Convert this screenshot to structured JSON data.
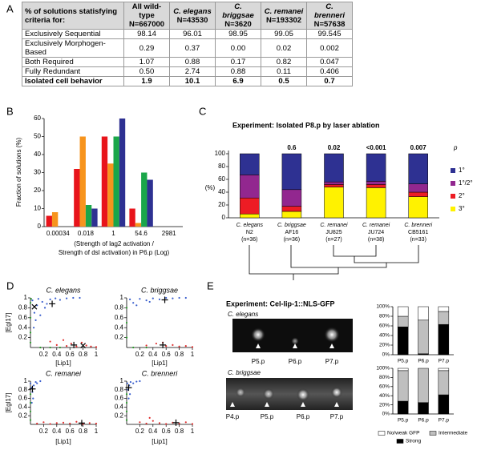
{
  "panel_labels": [
    "A",
    "B",
    "C",
    "D",
    "E"
  ],
  "table": {
    "header_label": "% of solutions statisfying criteria for:",
    "columns": [
      {
        "name": "All wild-type",
        "n": "N=667000",
        "italic": false
      },
      {
        "name": "C. elegans",
        "n": "N=43530",
        "italic": true
      },
      {
        "name": "C. briggsae",
        "n": "N=3620",
        "italic": true
      },
      {
        "name": "C. remanei",
        "n": "N=193302",
        "italic": true
      },
      {
        "name": "C. brenneri",
        "n": "N=57638",
        "italic": true
      }
    ],
    "rows": [
      [
        "Exclusively Sequential",
        "98.14",
        "96.01",
        "98.95",
        "99.05",
        "99.545"
      ],
      [
        "Exclusively Morphogen-Based",
        "0.29",
        "0.37",
        "0.00",
        "0.02",
        "0.002"
      ],
      [
        "Both Required",
        "1.07",
        "0.88",
        "0.17",
        "0.82",
        "0.047"
      ],
      [
        "Fully Redundant",
        "0.50",
        "2.74",
        "0.88",
        "0.11",
        "0.406"
      ],
      [
        "Isolated cell behavior",
        "1.9",
        "10.1",
        "6.9",
        "0.5",
        "0.7"
      ]
    ],
    "bold_last_row": true
  },
  "chart_data": [
    {
      "type": "bar",
      "ylabel": "Fraction of solutions (%)",
      "xlabel": [
        "(Strength of lag2 activation /",
        "Strength of dsl activation) in P6.p (Log)"
      ],
      "categories": [
        "0.00034",
        "0.018",
        "1",
        "54.6",
        "2981"
      ],
      "series": [
        {
          "color": "#e8141b",
          "values": [
            6,
            32,
            50,
            10,
            null
          ]
        },
        {
          "color": "#f7941d",
          "values": [
            8,
            50,
            35,
            2,
            null
          ]
        },
        {
          "color": "#1aa64a",
          "values": [
            null,
            12,
            50,
            30,
            null
          ]
        },
        {
          "color": "#2e3192",
          "values": [
            null,
            10,
            60,
            26,
            null
          ]
        }
      ],
      "ylim": [
        0,
        60
      ],
      "yticks": [
        0,
        10,
        20,
        30,
        40,
        50,
        60
      ]
    },
    {
      "type": "stacked_bar",
      "title": "Experiment: Isolated P8.p by laser ablation",
      "ylabel": "(%)",
      "categories": [
        [
          "C. elegans",
          "N2",
          "(n=36)"
        ],
        [
          "C. briggsae",
          "AF16",
          "(n=36)"
        ],
        [
          "C. remanei",
          "JU825",
          "(n=27)"
        ],
        [
          "C. remanei",
          "JU724",
          "(n=38)"
        ],
        [
          "C. brenneri",
          "CB5161",
          "(n=33)"
        ]
      ],
      "series": [
        {
          "name": "3°",
          "color": "#fff200",
          "values": [
            6,
            10,
            48,
            47,
            33
          ]
        },
        {
          "name": "2°",
          "color": "#ed1c24",
          "values": [
            25,
            8,
            4,
            5,
            7
          ]
        },
        {
          "name": "1°/2°",
          "color": "#92278f",
          "values": [
            36,
            26,
            4,
            5,
            13
          ]
        },
        {
          "name": "1°",
          "color": "#2e3192",
          "values": [
            33,
            56,
            44,
            43,
            47
          ]
        }
      ],
      "p_values": [
        null,
        "0.6",
        "0.02",
        "<0.001",
        "0.007"
      ],
      "p_label": "p",
      "ylim": [
        0,
        105
      ],
      "yticks": [
        0,
        20,
        40,
        60,
        80,
        100
      ],
      "legend": "right"
    },
    {
      "type": "scatter",
      "title": "C. elegans",
      "ylabel": "[Egl17]",
      "xlabel": "[Lip1]",
      "xlim": [
        0,
        1
      ],
      "ylim": [
        0,
        1
      ],
      "xticks": [
        0.2,
        0.4,
        0.6,
        0.8,
        1
      ],
      "yticks": [
        0.2,
        0.4,
        0.6,
        0.8,
        1
      ],
      "series": [
        {
          "color": "#3a5fcd",
          "x": [
            0.03,
            0.06,
            0.1,
            0.12,
            0.18,
            0.22,
            0.3,
            0.38,
            0.45,
            0.55,
            0.65,
            0.75,
            0.08,
            0.15,
            0.25,
            0.05
          ],
          "y": [
            0.95,
            0.7,
            0.85,
            0.98,
            0.92,
            0.8,
            0.97,
            0.99,
            0.96,
            0.99,
            1,
            1,
            0.55,
            0.65,
            0.88,
            0.4
          ]
        },
        {
          "color": "#e03030",
          "x": [
            0.3,
            0.4,
            0.5,
            0.55,
            0.62,
            0.7,
            0.78,
            0.85,
            0.92,
            1
          ],
          "y": [
            0.12,
            0.05,
            0.15,
            0.03,
            0.08,
            0.02,
            0.1,
            0.04,
            0.02,
            0.01
          ]
        },
        {
          "color": "#2a9a2a",
          "x": [
            0,
            0,
            0,
            0,
            0.01,
            0.15,
            0.3,
            0.45
          ],
          "y": [
            0.1,
            0.3,
            0.6,
            0.9,
            0.98,
            0,
            0,
            0
          ]
        },
        {
          "color": "#000000",
          "marker": "x",
          "x": [
            0.06,
            0.8
          ],
          "y": [
            0.82,
            0.04
          ]
        },
        {
          "color": "#000000",
          "marker": "plus",
          "x": [
            0.33,
            0.66
          ],
          "y": [
            0.88,
            0.05
          ]
        }
      ]
    },
    {
      "type": "scatter",
      "title": "C. briggsae",
      "xlabel": "[Lip1]",
      "xlim": [
        0,
        1
      ],
      "ylim": [
        0,
        1
      ],
      "xticks": [
        0.2,
        0.4,
        0.6,
        0.8,
        1
      ],
      "yticks": [
        0.2,
        0.4,
        0.6,
        0.8,
        1
      ],
      "series": [
        {
          "color": "#3a5fcd",
          "x": [
            0.05,
            0.1,
            0.2,
            0.3,
            0.4,
            0.5,
            0.6,
            0.7,
            0.8,
            0.9,
            0.15,
            0.35
          ],
          "y": [
            0.97,
            0.9,
            0.98,
            0.95,
            0.99,
            0.97,
            1,
            0.99,
            1,
            1,
            0.85,
            0.92
          ]
        },
        {
          "color": "#e03030",
          "x": [
            0.3,
            0.45,
            0.55,
            0.6,
            0.7,
            0.8,
            0.9,
            1
          ],
          "y": [
            0.04,
            0.08,
            0.1,
            0.03,
            0.05,
            0.02,
            0.03,
            0.01
          ]
        },
        {
          "color": "#2a9a2a",
          "x": [
            0,
            0,
            0,
            0.1,
            0.3
          ],
          "y": [
            0.2,
            0.5,
            0.8,
            0,
            0
          ]
        },
        {
          "color": "#000000",
          "marker": "plus",
          "x": [
            0.58,
            0.55
          ],
          "y": [
            0.96,
            0.05
          ]
        }
      ]
    },
    {
      "type": "scatter",
      "title": "C. remanei",
      "ylabel": "[Egl17]",
      "xlabel": "[Lip1]",
      "xlim": [
        0,
        1
      ],
      "ylim": [
        0,
        1
      ],
      "xticks": [
        0.2,
        0.4,
        0.6,
        0.8,
        1
      ],
      "yticks": [
        0.2,
        0.4,
        0.6,
        0.8,
        1
      ],
      "series": [
        {
          "color": "#3a5fcd",
          "x": [
            0,
            0.02,
            0.03,
            0.05,
            0.04,
            0.08,
            0.02,
            0.1,
            0.15
          ],
          "y": [
            0.95,
            0.85,
            0.75,
            0.9,
            0.6,
            0.98,
            0.5,
            0.95,
            1
          ]
        },
        {
          "color": "#e03030",
          "x": [
            0.1,
            0.2,
            0.3,
            0.4,
            0.5,
            0.6,
            0.7,
            0.8,
            0.9,
            1
          ],
          "y": [
            0.02,
            0.05,
            0.01,
            0.03,
            0.04,
            0.02,
            0.06,
            0.01,
            0.03,
            0.02
          ]
        },
        {
          "color": "#2a9a2a",
          "x": [
            0,
            0,
            0,
            0
          ],
          "y": [
            0.1,
            0.3,
            0.5,
            0.7
          ]
        },
        {
          "color": "#000000",
          "marker": "plus",
          "x": [
            0.03,
            0.78
          ],
          "y": [
            0.82,
            0.03
          ]
        }
      ]
    },
    {
      "type": "scatter",
      "title": "C. brenneri",
      "xlabel": "[Lip1]",
      "xlim": [
        0,
        1
      ],
      "ylim": [
        0,
        1
      ],
      "xticks": [
        0.2,
        0.4,
        0.6,
        0.8,
        1
      ],
      "yticks": [
        0.2,
        0.4,
        0.6,
        0.8,
        1
      ],
      "series": [
        {
          "color": "#3a5fcd",
          "x": [
            0.01,
            0.02,
            0.04,
            0.06,
            0.1,
            0.15,
            0.2,
            0.03,
            0.05
          ],
          "y": [
            0.95,
            0.8,
            0.9,
            0.98,
            0.95,
            0.99,
            1,
            0.6,
            0.7
          ]
        },
        {
          "color": "#e03030",
          "x": [
            0.2,
            0.3,
            0.4,
            0.5,
            0.6,
            0.7,
            0.8,
            0.9,
            1,
            0.35
          ],
          "y": [
            0.05,
            0.02,
            0.08,
            0.03,
            0.01,
            0.04,
            0.02,
            0.05,
            0.01,
            0.15
          ]
        },
        {
          "color": "#2a9a2a",
          "x": [
            0,
            0,
            0,
            0
          ],
          "y": [
            0.1,
            0.3,
            0.5,
            0.7
          ]
        },
        {
          "color": "#000000",
          "marker": "plus",
          "x": [
            0.03,
            0.75
          ],
          "y": [
            0.85,
            0.04
          ]
        }
      ]
    },
    {
      "type": "stacked_bar",
      "categories": [
        "P5.p",
        "P6.p",
        "P7.p"
      ],
      "series": [
        {
          "color": "#000000",
          "values": [
            58,
            2,
            63
          ]
        },
        {
          "color": "#bfbfbf",
          "values": [
            22,
            70,
            27
          ]
        },
        {
          "color": "#ffffff",
          "values": [
            20,
            28,
            10
          ]
        }
      ],
      "ylim": [
        0,
        100
      ],
      "yticks": [
        {
          "value": 0,
          "label": "0%"
        },
        {
          "value": 20,
          "label": "20%"
        },
        {
          "value": 40,
          "label": "40%"
        },
        {
          "value": 60,
          "label": "60%"
        },
        {
          "value": 80,
          "label": "80%"
        },
        {
          "value": 100,
          "label": "100%"
        }
      ]
    },
    {
      "type": "stacked_bar",
      "categories": [
        "P5.p",
        "P6.p",
        "P7.p"
      ],
      "series": [
        {
          "name": "Strong",
          "color": "#000000",
          "values": [
            28,
            25,
            42
          ]
        },
        {
          "name": "Intermediate",
          "color": "#bfbfbf",
          "values": [
            67,
            75,
            53
          ]
        },
        {
          "name": "No/weak GFP",
          "color": "#ffffff",
          "values": [
            5,
            0,
            5
          ]
        }
      ],
      "ylim": [
        0,
        100
      ],
      "yticks": [
        {
          "value": 0,
          "label": "0%"
        },
        {
          "value": 20,
          "label": "20%"
        },
        {
          "value": 40,
          "label": "40%"
        },
        {
          "value": 60,
          "label": "60%"
        },
        {
          "value": 80,
          "label": "80%"
        },
        {
          "value": 100,
          "label": "100%"
        }
      ],
      "legend": "bottom"
    }
  ],
  "panel_e": {
    "title": "Experiment: Cel-lip-1::NLS-GFP",
    "images": [
      {
        "species": "C. elegans",
        "cells": [
          "P5.p",
          "P6.p",
          "P7.p"
        ]
      },
      {
        "species": "C. briggsae",
        "cells": [
          "P4.p",
          "P5.p",
          "P6.p",
          "P7.p"
        ]
      }
    ]
  }
}
